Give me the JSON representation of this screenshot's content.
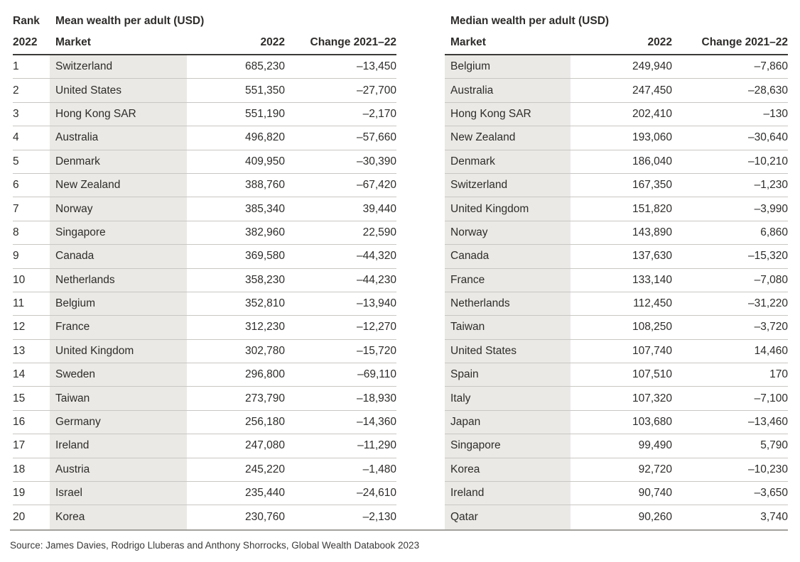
{
  "chart_data": [
    {
      "type": "table",
      "title": "Mean wealth per adult (USD)",
      "rank_header": {
        "label": "Rank",
        "year": "2022"
      },
      "columns": {
        "market": "Market",
        "year": "2022",
        "change": "Change 2021–22"
      },
      "rows": [
        {
          "rank": "1",
          "market": "Switzerland",
          "value": "685,230",
          "change": "–13,450"
        },
        {
          "rank": "2",
          "market": "United States",
          "value": "551,350",
          "change": "–27,700"
        },
        {
          "rank": "3",
          "market": "Hong Kong SAR",
          "value": "551,190",
          "change": "–2,170"
        },
        {
          "rank": "4",
          "market": "Australia",
          "value": "496,820",
          "change": "–57,660"
        },
        {
          "rank": "5",
          "market": "Denmark",
          "value": "409,950",
          "change": "–30,390"
        },
        {
          "rank": "6",
          "market": "New Zealand",
          "value": "388,760",
          "change": "–67,420"
        },
        {
          "rank": "7",
          "market": "Norway",
          "value": "385,340",
          "change": "39,440"
        },
        {
          "rank": "8",
          "market": "Singapore",
          "value": "382,960",
          "change": "22,590"
        },
        {
          "rank": "9",
          "market": "Canada",
          "value": "369,580",
          "change": "–44,320"
        },
        {
          "rank": "10",
          "market": "Netherlands",
          "value": "358,230",
          "change": "–44,230"
        },
        {
          "rank": "11",
          "market": "Belgium",
          "value": "352,810",
          "change": "–13,940"
        },
        {
          "rank": "12",
          "market": "France",
          "value": "312,230",
          "change": "–12,270"
        },
        {
          "rank": "13",
          "market": "United Kingdom",
          "value": "302,780",
          "change": "–15,720"
        },
        {
          "rank": "14",
          "market": "Sweden",
          "value": "296,800",
          "change": "–69,110"
        },
        {
          "rank": "15",
          "market": "Taiwan",
          "value": "273,790",
          "change": "–18,930"
        },
        {
          "rank": "16",
          "market": "Germany",
          "value": "256,180",
          "change": "–14,360"
        },
        {
          "rank": "17",
          "market": "Ireland",
          "value": "247,080",
          "change": "–11,290"
        },
        {
          "rank": "18",
          "market": "Austria",
          "value": "245,220",
          "change": "–1,480"
        },
        {
          "rank": "19",
          "market": "Israel",
          "value": "235,440",
          "change": "–24,610"
        },
        {
          "rank": "20",
          "market": "Korea",
          "value": "230,760",
          "change": "–2,130"
        }
      ]
    },
    {
      "type": "table",
      "title": "Median wealth per adult (USD)",
      "columns": {
        "market": "Market",
        "year": "2022",
        "change": "Change 2021–22"
      },
      "rows": [
        {
          "market": "Belgium",
          "value": "249,940",
          "change": "–7,860"
        },
        {
          "market": "Australia",
          "value": "247,450",
          "change": "–28,630"
        },
        {
          "market": "Hong Kong SAR",
          "value": "202,410",
          "change": "–130"
        },
        {
          "market": "New Zealand",
          "value": "193,060",
          "change": "–30,640"
        },
        {
          "market": "Denmark",
          "value": "186,040",
          "change": "–10,210"
        },
        {
          "market": "Switzerland",
          "value": "167,350",
          "change": "–1,230"
        },
        {
          "market": "United Kingdom",
          "value": "151,820",
          "change": "–3,990"
        },
        {
          "market": "Norway",
          "value": "143,890",
          "change": "6,860"
        },
        {
          "market": "Canada",
          "value": "137,630",
          "change": "–15,320"
        },
        {
          "market": "France",
          "value": "133,140",
          "change": "–7,080"
        },
        {
          "market": "Netherlands",
          "value": "112,450",
          "change": "–31,220"
        },
        {
          "market": "Taiwan",
          "value": "108,250",
          "change": "–3,720"
        },
        {
          "market": "United States",
          "value": "107,740",
          "change": "14,460"
        },
        {
          "market": "Spain",
          "value": "107,510",
          "change": "170"
        },
        {
          "market": "Italy",
          "value": "107,320",
          "change": "–7,100"
        },
        {
          "market": "Japan",
          "value": "103,680",
          "change": "–13,460"
        },
        {
          "market": "Singapore",
          "value": "99,490",
          "change": "5,790"
        },
        {
          "market": "Korea",
          "value": "92,720",
          "change": "–10,230"
        },
        {
          "market": "Ireland",
          "value": "90,740",
          "change": "–3,650"
        },
        {
          "market": "Qatar",
          "value": "90,260",
          "change": "3,740"
        }
      ]
    }
  ],
  "source": "Source: James Davies, Rodrigo Lluberas and Anthony Shorrocks, Global Wealth Databook 2023",
  "colors": {
    "shade": "#ebe9e5",
    "header_rule": "#3b3a38",
    "row_separator": "#c9c7c3",
    "bottom_rule": "#a3a19c",
    "text": "#2e2d2b"
  }
}
